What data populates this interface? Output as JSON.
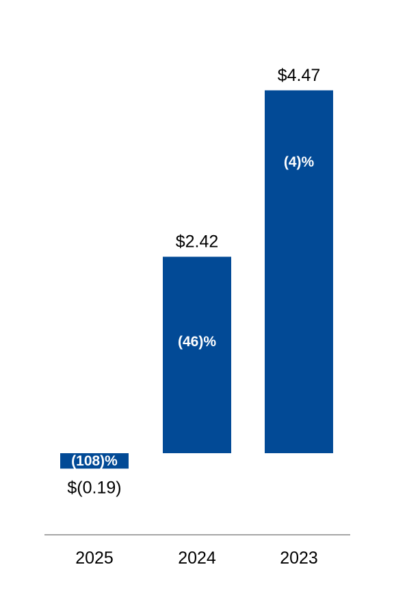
{
  "chart_data": {
    "type": "bar",
    "categories": [
      "2025",
      "2024",
      "2023"
    ],
    "values": [
      -0.19,
      2.42,
      4.47
    ],
    "value_labels": [
      "$(0.19)",
      "$2.42",
      "$4.47"
    ],
    "change_labels": [
      "(108)%",
      "(46)%",
      "(4)%"
    ],
    "title": "",
    "xlabel": "",
    "ylabel": "",
    "ylim": [
      -0.3,
      5.2
    ],
    "grid": false,
    "legend": "none",
    "colors": {
      "bar": "#024A96",
      "baseline": "#A6A6A6",
      "text": "#000000",
      "bar_text": "#FFFFFF"
    }
  }
}
